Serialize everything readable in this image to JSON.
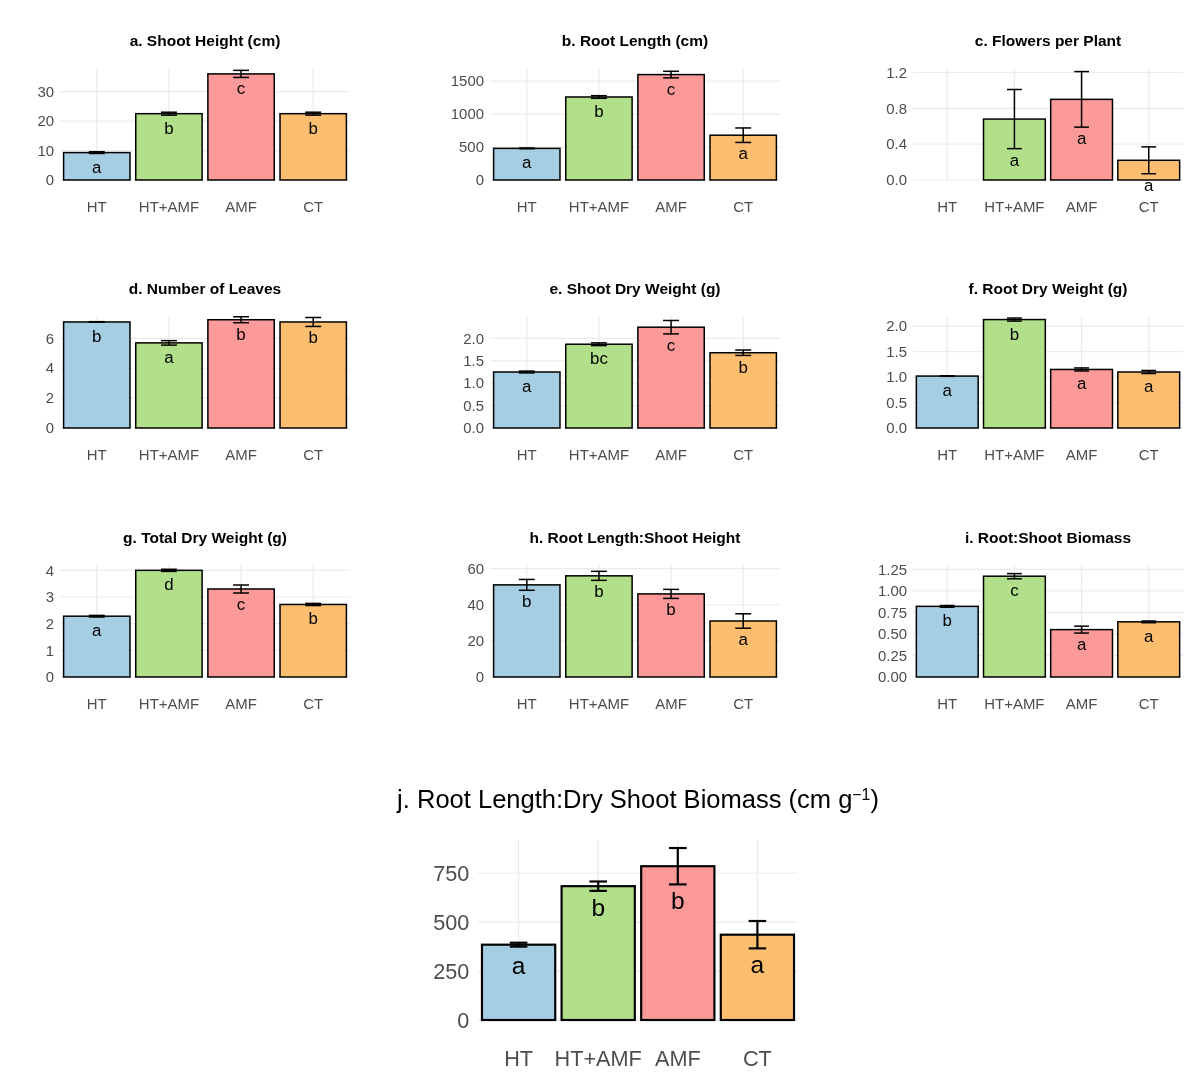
{
  "chart_data": [
    {
      "type": "bar",
      "title": "a. Shoot Height (cm)",
      "categories": [
        "HT",
        "HT+AMF",
        "AMF",
        "CT"
      ],
      "values": [
        9.3,
        22.5,
        36,
        22.5
      ],
      "errors": [
        0.3,
        0.5,
        1.2,
        0.5
      ],
      "colors": [
        "#a6cee3",
        "#b2df8a",
        "#fb9a99",
        "#fdbf6f"
      ],
      "ylim": [
        0,
        38
      ],
      "yticks": [
        0,
        10,
        20,
        30
      ],
      "grid": true,
      "annotations": [
        {
          "text": "a",
          "x": "HT",
          "y": 9.3
        },
        {
          "text": "b",
          "x": "HT+AMF",
          "y": 22.5
        },
        {
          "text": "c",
          "x": "AMF",
          "y": 36
        },
        {
          "text": "b",
          "x": "CT",
          "y": 22.5
        }
      ]
    },
    {
      "type": "bar",
      "title": "b. Root Length (cm)",
      "categories": [
        "HT",
        "HT+AMF",
        "AMF",
        "CT"
      ],
      "values": [
        480,
        1260,
        1600,
        680
      ],
      "errors": [
        5,
        20,
        50,
        110
      ],
      "colors": [
        "#a6cee3",
        "#b2df8a",
        "#fb9a99",
        "#fdbf6f"
      ],
      "ylim": [
        0,
        1700
      ],
      "yticks": [
        0,
        500,
        1000,
        1500
      ],
      "grid": true,
      "annotations": [
        {
          "text": "a",
          "x": "HT",
          "y": 480
        },
        {
          "text": "b",
          "x": "HT+AMF",
          "y": 1260
        },
        {
          "text": "c",
          "x": "AMF",
          "y": 1600
        },
        {
          "text": "a",
          "x": "CT",
          "y": 680
        }
      ]
    },
    {
      "type": "bar",
      "title": "c. Flowers per Plant",
      "categories": [
        "HT",
        "HT+AMF",
        "AMF",
        "CT"
      ],
      "values": [
        0,
        0.68,
        0.9,
        0.22
      ],
      "errors": [
        null,
        0.33,
        0.31,
        0.15
      ],
      "colors": [
        "#a6cee3",
        "#b2df8a",
        "#fb9a99",
        "#fdbf6f"
      ],
      "ylim": [
        0,
        1.25
      ],
      "yticks": [
        {
          "value": 0,
          "label": "0.0"
        },
        {
          "value": 0.4,
          "label": "0.4"
        },
        {
          "value": 0.8,
          "label": "0.8"
        },
        {
          "value": 1.2,
          "label": "1.2"
        }
      ],
      "grid": true,
      "annotations": [
        {
          "text": "a",
          "x": "HT+AMF",
          "y": 0.68
        },
        {
          "text": "a",
          "x": "AMF",
          "y": 0.9
        },
        {
          "text": "a",
          "x": "CT",
          "y": 0.22
        }
      ]
    },
    {
      "type": "bar",
      "title": "d. Number of Leaves",
      "categories": [
        "HT",
        "HT+AMF",
        "AMF",
        "CT"
      ],
      "values": [
        7.1,
        5.7,
        7.25,
        7.1
      ],
      "errors": [
        0.02,
        0.15,
        0.2,
        0.3
      ],
      "colors": [
        "#a6cee3",
        "#b2df8a",
        "#fb9a99",
        "#fdbf6f"
      ],
      "ylim": [
        0,
        7.5
      ],
      "yticks": [
        0,
        2,
        4,
        6
      ],
      "grid": true,
      "annotations": [
        {
          "text": "b",
          "x": "HT",
          "y": 7.1
        },
        {
          "text": "a",
          "x": "HT+AMF",
          "y": 5.7
        },
        {
          "text": "b",
          "x": "AMF",
          "y": 7.25
        },
        {
          "text": "b",
          "x": "CT",
          "y": 7.1
        }
      ]
    },
    {
      "type": "bar",
      "title": "e. Shoot Dry Weight (g)",
      "categories": [
        "HT",
        "HT+AMF",
        "AMF",
        "CT"
      ],
      "values": [
        1.25,
        1.87,
        2.25,
        1.68
      ],
      "errors": [
        0.02,
        0.03,
        0.15,
        0.06
      ],
      "colors": [
        "#a6cee3",
        "#b2df8a",
        "#fb9a99",
        "#fdbf6f"
      ],
      "ylim": [
        0,
        2.5
      ],
      "yticks": [
        {
          "value": 0,
          "label": "0.0"
        },
        {
          "value": 0.5,
          "label": "0.5"
        },
        {
          "value": 1,
          "label": "1.0"
        },
        {
          "value": 1.5,
          "label": "1.5"
        },
        {
          "value": 2,
          "label": "2.0"
        }
      ],
      "grid": true,
      "annotations": [
        {
          "text": "a",
          "x": "HT",
          "y": 1.25
        },
        {
          "text": "bc",
          "x": "HT+AMF",
          "y": 1.87
        },
        {
          "text": "c",
          "x": "AMF",
          "y": 2.25
        },
        {
          "text": "b",
          "x": "CT",
          "y": 1.68
        }
      ]
    },
    {
      "type": "bar",
      "title": "f. Root Dry Weight (g)",
      "categories": [
        "HT",
        "HT+AMF",
        "AMF",
        "CT"
      ],
      "values": [
        1.02,
        2.13,
        1.15,
        1.1
      ],
      "errors": [
        0.005,
        0.03,
        0.03,
        0.03
      ],
      "colors": [
        "#a6cee3",
        "#b2df8a",
        "#fb9a99",
        "#fdbf6f"
      ],
      "ylim": [
        0,
        2.2
      ],
      "yticks": [
        {
          "value": 0,
          "label": "0.0"
        },
        {
          "value": 0.5,
          "label": "0.5"
        },
        {
          "value": 1,
          "label": "1.0"
        },
        {
          "value": 1.5,
          "label": "1.5"
        },
        {
          "value": 2,
          "label": "2.0"
        }
      ],
      "grid": true,
      "annotations": [
        {
          "text": "a",
          "x": "HT",
          "y": 1.02
        },
        {
          "text": "b",
          "x": "HT+AMF",
          "y": 2.13
        },
        {
          "text": "a",
          "x": "AMF",
          "y": 1.15
        },
        {
          "text": "a",
          "x": "CT",
          "y": 1.1
        }
      ]
    },
    {
      "type": "bar",
      "title": "g. Total Dry Weight (g)",
      "categories": [
        "HT",
        "HT+AMF",
        "AMF",
        "CT"
      ],
      "values": [
        2.28,
        4.0,
        3.3,
        2.72
      ],
      "errors": [
        0.03,
        0.04,
        0.15,
        0.04
      ],
      "colors": [
        "#a6cee3",
        "#b2df8a",
        "#fb9a99",
        "#fdbf6f"
      ],
      "ylim": [
        0,
        4.2
      ],
      "yticks": [
        0,
        1,
        2,
        3,
        4
      ],
      "grid": true,
      "annotations": [
        {
          "text": "a",
          "x": "HT",
          "y": 2.28
        },
        {
          "text": "d",
          "x": "HT+AMF",
          "y": 4.0
        },
        {
          "text": "c",
          "x": "AMF",
          "y": 3.3
        },
        {
          "text": "b",
          "x": "CT",
          "y": 2.72
        }
      ]
    },
    {
      "type": "bar",
      "title": "h. Root Length:Shoot Height",
      "categories": [
        "HT",
        "HT+AMF",
        "AMF",
        "CT"
      ],
      "values": [
        51,
        56,
        46,
        31
      ],
      "errors": [
        3,
        2.5,
        2.5,
        4
      ],
      "colors": [
        "#a6cee3",
        "#b2df8a",
        "#fb9a99",
        "#fdbf6f"
      ],
      "ylim": [
        0,
        62
      ],
      "yticks": [
        0,
        20,
        40,
        60
      ],
      "grid": true,
      "annotations": [
        {
          "text": "b",
          "x": "HT",
          "y": 51
        },
        {
          "text": "b",
          "x": "HT+AMF",
          "y": 56
        },
        {
          "text": "b",
          "x": "AMF",
          "y": 46
        },
        {
          "text": "a",
          "x": "CT",
          "y": 31
        }
      ]
    },
    {
      "type": "bar",
      "title": "i. Root:Shoot Biomass",
      "categories": [
        "HT",
        "HT+AMF",
        "AMF",
        "CT"
      ],
      "values": [
        0.82,
        1.17,
        0.55,
        0.64
      ],
      "errors": [
        0.01,
        0.03,
        0.04,
        0.01
      ],
      "colors": [
        "#a6cee3",
        "#b2df8a",
        "#fb9a99",
        "#fdbf6f"
      ],
      "ylim": [
        0,
        1.3
      ],
      "yticks": [
        {
          "value": 0,
          "label": "0.00"
        },
        {
          "value": 0.25,
          "label": "0.25"
        },
        {
          "value": 0.5,
          "label": "0.50"
        },
        {
          "value": 0.75,
          "label": "0.75"
        },
        {
          "value": 1,
          "label": "1.00"
        },
        {
          "value": 1.25,
          "label": "1.25"
        }
      ],
      "grid": true,
      "annotations": [
        {
          "text": "b",
          "x": "HT",
          "y": 0.82
        },
        {
          "text": "c",
          "x": "HT+AMF",
          "y": 1.17
        },
        {
          "text": "a",
          "x": "AMF",
          "y": 0.55
        },
        {
          "text": "a",
          "x": "CT",
          "y": 0.64
        }
      ]
    },
    {
      "type": "bar",
      "title": "j. Root Length:Dry Shoot Biomass (cm g$^{−1}$)",
      "categories": [
        "HT",
        "HT+AMF",
        "AMF",
        "CT"
      ],
      "values": [
        385,
        684,
        786,
        436
      ],
      "errors": [
        10,
        24,
        93,
        70
      ],
      "colors": [
        "#a6cee3",
        "#b2df8a",
        "#fb9a99",
        "#fdbf6f"
      ],
      "ylim": [
        0,
        920
      ],
      "yticks": [
        0,
        250,
        500,
        750
      ],
      "grid": true,
      "annotations": [
        {
          "text": "a",
          "x": "HT",
          "y": 385
        },
        {
          "text": "b",
          "x": "HT+AMF",
          "y": 684
        },
        {
          "text": "b",
          "x": "AMF",
          "y": 786
        },
        {
          "text": "a",
          "x": "CT",
          "y": 436
        }
      ]
    }
  ]
}
